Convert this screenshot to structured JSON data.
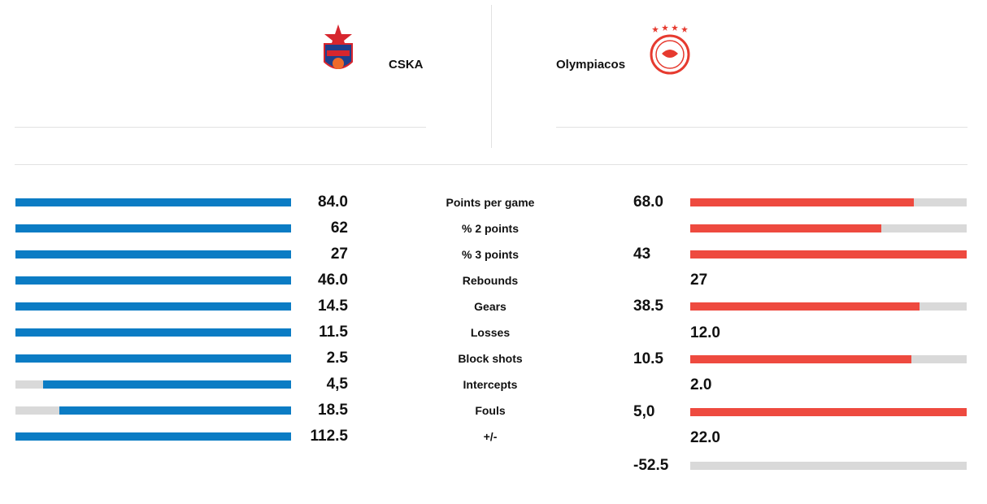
{
  "teams": {
    "home": {
      "name": "CSKA",
      "logo_icon": "cska-crest-icon",
      "color": "#0b7cc4"
    },
    "away": {
      "name": "Olympiacos",
      "logo_icon": "olympiacos-crest-icon",
      "color": "#ee4a3f"
    }
  },
  "stats": [
    {
      "label": "Points per game",
      "home_value": "84.0",
      "home_fill": 1.0,
      "away_value": "68.0",
      "away_fill": 0.81,
      "away_bar": true
    },
    {
      "label": "% 2 points",
      "home_value": "62",
      "home_fill": 1.0,
      "away_value": "",
      "away_fill": 0.69,
      "away_bar": true
    },
    {
      "label": "% 3 points",
      "home_value": "27",
      "home_fill": 1.0,
      "away_value": "43",
      "away_fill": 1.0,
      "away_bar": true
    },
    {
      "label": "Rebounds",
      "home_value": "46.0",
      "home_fill": 1.0,
      "away_value": "27",
      "away_fill": 0,
      "away_bar": false
    },
    {
      "label": "Gears",
      "home_value": "14.5",
      "home_fill": 1.0,
      "away_value": "38.5",
      "away_fill": 0.83,
      "away_bar": true
    },
    {
      "label": "Losses",
      "home_value": "11.5",
      "home_fill": 1.0,
      "away_value": "12.0",
      "away_fill": 0,
      "away_bar": false
    },
    {
      "label": "Block shots",
      "home_value": "2.5",
      "home_fill": 1.0,
      "away_value": "10.5",
      "away_fill": 0.8,
      "away_bar": true
    },
    {
      "label": "Intercepts",
      "home_value": "4,5",
      "home_fill": 0.9,
      "away_value": "2.0",
      "away_fill": 0,
      "away_bar": false
    },
    {
      "label": "Fouls",
      "home_value": "18.5",
      "home_fill": 0.84,
      "away_value": "5,0",
      "away_fill": 1.0,
      "away_bar": true
    },
    {
      "label": "+/-",
      "home_value": "112.5",
      "home_fill": 1.0,
      "away_value": "22.0",
      "away_fill": 0,
      "away_bar": false
    },
    {
      "label": "",
      "home_value": null,
      "home_fill": null,
      "away_value": "-52.5",
      "away_fill": 0.0,
      "away_bar": true
    }
  ]
}
